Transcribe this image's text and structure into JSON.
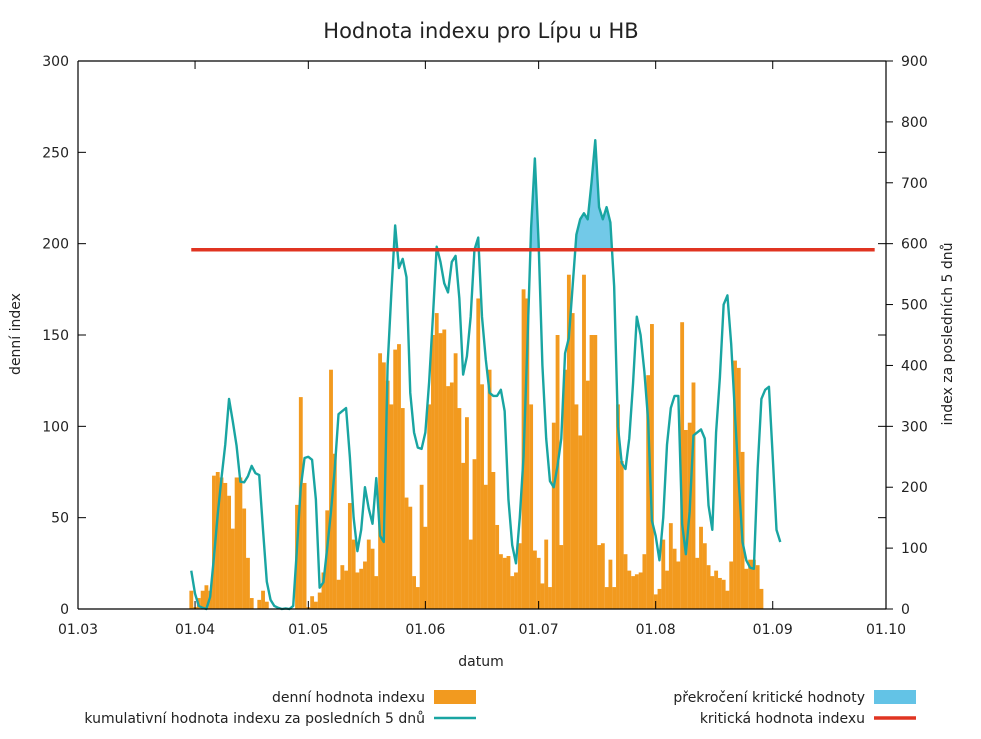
{
  "chart_data": {
    "type": "bar",
    "title": "Hodnota indexu pro Lípu u HB",
    "xlabel": "datum",
    "ylabel": "denní index",
    "y2label": "index za posledních 5 dnů",
    "grid": false,
    "legend_placement": "bottom",
    "x_tick_labels": [
      "01.03",
      "01.04",
      "01.05",
      "01.06",
      "01.07",
      "01.08",
      "01.09",
      "01.10"
    ],
    "x_range": [
      "2023-03-01",
      "2023-10-01"
    ],
    "ylim": [
      0,
      300
    ],
    "y_ticks": [
      0,
      50,
      100,
      150,
      200,
      250,
      300
    ],
    "y2lim": [
      0,
      900
    ],
    "y2_ticks": [
      0,
      100,
      200,
      300,
      400,
      500,
      600,
      700,
      800,
      900
    ],
    "colors": {
      "daily": "#f29a1f",
      "cumulative": "#19a5a2",
      "exceedance": "#63c3e6",
      "critical": "#e03421",
      "axis": "#000000"
    },
    "series": [
      {
        "name": "denní hodnota indexu",
        "kind": "bar",
        "axis": "left",
        "start_date": "2023-03-31",
        "values": [
          10,
          1,
          6,
          10,
          13,
          10,
          73,
          75,
          72,
          69,
          62,
          44,
          72,
          72,
          55,
          28,
          6,
          0,
          5,
          10,
          4,
          0,
          0,
          0,
          0,
          0,
          0,
          0,
          57,
          116,
          69,
          1,
          7,
          4,
          9,
          20,
          54,
          131,
          85,
          16,
          24,
          21,
          58,
          38,
          20,
          22,
          26,
          38,
          33,
          18,
          140,
          135,
          125,
          112,
          142,
          145,
          110,
          61,
          56,
          18,
          12,
          68,
          45,
          112,
          150,
          162,
          151,
          153,
          122,
          124,
          140,
          110,
          80,
          105,
          38,
          82,
          170,
          123,
          68,
          131,
          75,
          46,
          30,
          28,
          29,
          18,
          20,
          36,
          175,
          170,
          112,
          32,
          28,
          14,
          38,
          12,
          102,
          150,
          35,
          131,
          183,
          162,
          112,
          95,
          183,
          125,
          150,
          150,
          35,
          36,
          12,
          27,
          12,
          112,
          81,
          30,
          21,
          18,
          19,
          20,
          30,
          128,
          156,
          8,
          11,
          38,
          21,
          47,
          33,
          26,
          157,
          98,
          102,
          124,
          28,
          45,
          36,
          24,
          18,
          21,
          17,
          16,
          10,
          26,
          136,
          132,
          86,
          22,
          27,
          27,
          24,
          11
        ]
      },
      {
        "name": "kumulativní hodnota indexu za posledních 5 dnů",
        "kind": "line",
        "axis": "right",
        "start_date": "2023-03-31",
        "values": [
          63,
          25,
          5,
          2,
          0,
          20,
          85,
          155,
          215,
          270,
          345,
          308,
          268,
          209,
          208,
          218,
          235,
          223,
          220,
          130,
          45,
          15,
          5,
          2,
          0,
          1,
          0,
          5,
          100,
          200,
          248,
          250,
          245,
          180,
          35,
          44,
          100,
          160,
          230,
          320,
          325,
          330,
          250,
          150,
          95,
          130,
          200,
          165,
          140,
          215,
          120,
          110,
          400,
          520,
          630,
          560,
          575,
          545,
          355,
          290,
          265,
          263,
          290,
          373,
          480,
          595,
          570,
          535,
          520,
          570,
          580,
          510,
          385,
          415,
          480,
          590,
          610,
          480,
          410,
          355,
          350,
          350,
          360,
          325,
          180,
          105,
          75,
          150,
          250,
          430,
          625,
          740,
          600,
          400,
          280,
          210,
          200,
          235,
          280,
          420,
          445,
          530,
          615,
          640,
          650,
          640,
          700,
          770,
          660,
          640,
          660,
          635,
          530,
          300,
          240,
          230,
          280,
          370,
          480,
          450,
          390,
          310,
          145,
          120,
          80,
          150,
          270,
          330,
          350,
          350,
          140,
          90,
          160,
          285,
          290,
          295,
          280,
          170,
          130,
          290,
          380,
          500,
          515,
          435,
          320,
          210,
          110,
          80,
          68,
          66,
          230,
          345,
          360,
          365,
          250,
          130,
          110
        ]
      },
      {
        "name": "kritická hodnota indexu",
        "kind": "hline",
        "axis": "right",
        "value": 590,
        "x_from": "2023-03-31",
        "x_to": "2023-09-28"
      },
      {
        "name": "překročení kritické hodnoty",
        "kind": "area-above-threshold",
        "axis": "right",
        "threshold": 590
      }
    ],
    "legend": [
      {
        "label": "denní hodnota indexu",
        "symbol": "bar",
        "color_key": "daily",
        "column": "left"
      },
      {
        "label": "kumulativní hodnota indexu za posledních 5 dnů",
        "symbol": "line",
        "color_key": "cumulative",
        "column": "left"
      },
      {
        "label": "překročení kritické hodnoty",
        "symbol": "bar",
        "color_key": "exceedance",
        "column": "right"
      },
      {
        "label": "kritická hodnota indexu",
        "symbol": "line",
        "color_key": "critical",
        "column": "right"
      }
    ]
  }
}
